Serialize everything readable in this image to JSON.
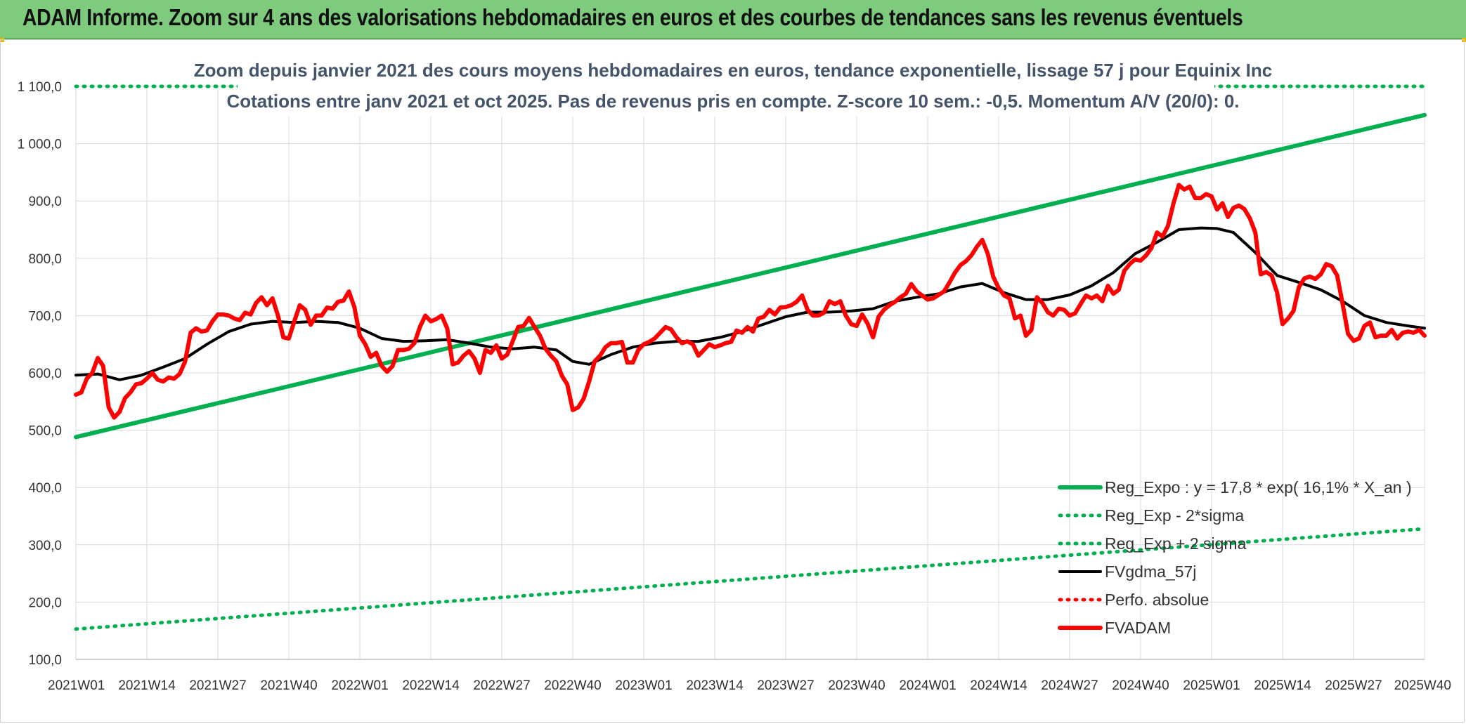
{
  "header": {
    "title": "ADAM Informe. Zoom sur 4 ans des valorisations hebdomadaires en euros et des courbes de tendances sans les revenus éventuels"
  },
  "colors": {
    "banner": "#7ecb7e",
    "regExpo": "#00b050",
    "regBands": "#00b050",
    "fvgdma": "#000000",
    "perfo": "#ff0000",
    "fvadam": "#ff0000",
    "grid": "#d9d9d9"
  },
  "chart_data": {
    "type": "line",
    "subtitle_line1": "Zoom depuis janvier 2021 des cours moyens hebdomadaires en euros, tendance exponentielle, lissage 57 j pour Equinix Inc",
    "subtitle_line2": "Cotations entre janv 2021 et oct 2025. Pas de revenus pris en compte. Z-score 10 sem.: -0,5. Momentum A/V (20/0): 0.",
    "ylim": [
      100,
      1100
    ],
    "y_ticks": [
      "100,0",
      "200,0",
      "300,0",
      "400,0",
      "500,0",
      "600,0",
      "700,0",
      "800,0",
      "900,0",
      "1 000,0",
      "1 100,0"
    ],
    "y_tick_values": [
      100,
      200,
      300,
      400,
      500,
      600,
      700,
      800,
      900,
      1000,
      1100
    ],
    "x_range_weeks": [
      0,
      247
    ],
    "x_ticks": [
      "2021W01",
      "2021W14",
      "2021W27",
      "2021W40",
      "2022W01",
      "2022W14",
      "2022W27",
      "2022W40",
      "2023W01",
      "2023W14",
      "2023W27",
      "2023W40",
      "2024W01",
      "2024W14",
      "2024W27",
      "2024W40",
      "2025W01",
      "2025W14",
      "2025W27",
      "2025W40"
    ],
    "x_tick_weeks": [
      0,
      13,
      26,
      39,
      52,
      65,
      78,
      91,
      104,
      117,
      130,
      143,
      156,
      169,
      182,
      195,
      208,
      221,
      234,
      247
    ],
    "legend": [
      {
        "label": "Reg_Expo : y = 17,8 * exp( 16,1% *  X_an )",
        "style": "solid-thick",
        "color": "#00b050"
      },
      {
        "label": "Reg_Exp - 2*sigma",
        "style": "dotted",
        "color": "#00b050"
      },
      {
        "label": "Reg_Exp + 2 sigma",
        "style": "dotted",
        "color": "#00b050"
      },
      {
        "label": "FVgdma_57j",
        "style": "solid",
        "color": "#000000"
      },
      {
        "label": "Perfo. absolue",
        "style": "dotted",
        "color": "#ff0000"
      },
      {
        "label": "FVADAM",
        "style": "solid-thick",
        "color": "#ff0000"
      }
    ],
    "series": [
      {
        "name": "Reg_Expo",
        "x": [
          0,
          247
        ],
        "y": [
          488,
          1050
        ]
      },
      {
        "name": "Reg_Exp - 2*sigma",
        "x": [
          0,
          247
        ],
        "y": [
          153,
          328
        ]
      },
      {
        "name": "Reg_Exp + 2 sigma",
        "x": [
          0,
          247
        ],
        "y": [
          1100,
          1100
        ]
      },
      {
        "name": "FVgdma_57j",
        "x": [
          0,
          4,
          8,
          12,
          16,
          20,
          24,
          28,
          32,
          36,
          40,
          44,
          48,
          52,
          56,
          60,
          64,
          68,
          72,
          76,
          80,
          84,
          88,
          91,
          94,
          98,
          102,
          106,
          110,
          114,
          118,
          122,
          126,
          130,
          134,
          138,
          142,
          146,
          150,
          154,
          158,
          162,
          166,
          170,
          174,
          178,
          182,
          186,
          190,
          194,
          198,
          202,
          206,
          209,
          212,
          216,
          220,
          224,
          228,
          232,
          236,
          240,
          244,
          247
        ],
        "y": [
          596,
          598,
          588,
          596,
          610,
          625,
          650,
          672,
          685,
          690,
          688,
          690,
          688,
          678,
          660,
          655,
          656,
          658,
          652,
          645,
          642,
          645,
          640,
          620,
          615,
          632,
          645,
          652,
          655,
          655,
          662,
          672,
          685,
          698,
          706,
          706,
          708,
          712,
          725,
          732,
          738,
          750,
          756,
          740,
          728,
          728,
          736,
          752,
          775,
          808,
          828,
          850,
          853,
          852,
          845,
          810,
          770,
          758,
          745,
          725,
          700,
          688,
          682,
          678
        ]
      },
      {
        "name": "FVADAM",
        "x": [
          0,
          1,
          2,
          3,
          4,
          5,
          6,
          7,
          8,
          9,
          10,
          11,
          12,
          13,
          14,
          15,
          16,
          17,
          18,
          19,
          20,
          21,
          22,
          23,
          24,
          25,
          26,
          27,
          28,
          29,
          30,
          31,
          32,
          33,
          34,
          35,
          36,
          37,
          38,
          39,
          40,
          41,
          42,
          43,
          44,
          45,
          46,
          47,
          48,
          49,
          50,
          51,
          52,
          53,
          54,
          55,
          56,
          57,
          58,
          59,
          60,
          61,
          62,
          63,
          64,
          65,
          66,
          67,
          68,
          69,
          70,
          71,
          72,
          73,
          74,
          75,
          76,
          77,
          78,
          79,
          80,
          81,
          82,
          83,
          84,
          85,
          86,
          87,
          88,
          89,
          90,
          91,
          92,
          93,
          94,
          95,
          96,
          97,
          98,
          99,
          100,
          101,
          102,
          103,
          104,
          105,
          106,
          107,
          108,
          109,
          110,
          111,
          112,
          113,
          114,
          115,
          116,
          117,
          118,
          119,
          120,
          121,
          122,
          123,
          124,
          125,
          126,
          127,
          128,
          129,
          130,
          131,
          132,
          133,
          134,
          135,
          136,
          137,
          138,
          139,
          140,
          141,
          142,
          143,
          144,
          145,
          146,
          147,
          148,
          149,
          150,
          151,
          152,
          153,
          154,
          155,
          156,
          157,
          158,
          159,
          160,
          161,
          162,
          163,
          164,
          165,
          166,
          167,
          168,
          169,
          170,
          171,
          172,
          173,
          174,
          175,
          176,
          177,
          178,
          179,
          180,
          181,
          182,
          183,
          184,
          185,
          186,
          187,
          188,
          189,
          190,
          191,
          192,
          193,
          194,
          195,
          196,
          197,
          198,
          199,
          200,
          201,
          202,
          203,
          204,
          205,
          206,
          207,
          208,
          209,
          210,
          211,
          212,
          213,
          214,
          215,
          216,
          217,
          218,
          219,
          220,
          221,
          222,
          223,
          224,
          225,
          226,
          227,
          228,
          229,
          230,
          231,
          232,
          233,
          234,
          235,
          236,
          237,
          238,
          239,
          240,
          241,
          242,
          243,
          244,
          245,
          246,
          247
        ],
        "y": [
          562,
          566,
          590,
          600,
          626,
          612,
          540,
          522,
          532,
          556,
          566,
          580,
          582,
          590,
          600,
          588,
          585,
          592,
          590,
          598,
          620,
          670,
          678,
          672,
          674,
          690,
          702,
          702,
          700,
          695,
          692,
          705,
          702,
          722,
          732,
          718,
          730,
          700,
          662,
          660,
          690,
          718,
          710,
          684,
          700,
          700,
          714,
          712,
          724,
          726,
          742,
          715,
          665,
          650,
          628,
          635,
          612,
          602,
          612,
          640,
          640,
          642,
          652,
          680,
          700,
          690,
          694,
          700,
          678,
          615,
          618,
          630,
          638,
          625,
          600,
          640,
          635,
          648,
          625,
          632,
          655,
          680,
          682,
          696,
          680,
          665,
          642,
          630,
          620,
          595,
          580,
          535,
          540,
          555,
          585,
          620,
          630,
          645,
          652,
          652,
          654,
          618,
          618,
          640,
          650,
          654,
          660,
          670,
          680,
          676,
          662,
          652,
          655,
          650,
          630,
          640,
          650,
          645,
          648,
          652,
          654,
          674,
          670,
          680,
          672,
          695,
          698,
          710,
          702,
          714,
          715,
          718,
          724,
          735,
          710,
          700,
          700,
          705,
          725,
          720,
          725,
          700,
          685,
          682,
          702,
          686,
          662,
          698,
          710,
          718,
          724,
          732,
          738,
          755,
          742,
          735,
          728,
          730,
          736,
          742,
          758,
          775,
          788,
          795,
          805,
          820,
          832,
          808,
          768,
          748,
          735,
          730,
          695,
          700,
          665,
          675,
          732,
          722,
          706,
          700,
          712,
          710,
          700,
          704,
          720,
          735,
          730,
          735,
          725,
          752,
          738,
          745,
          778,
          790,
          798,
          796,
          805,
          818,
          845,
          838,
          856,
          895,
          928,
          920,
          925,
          905,
          905,
          912,
          908,
          885,
          896,
          872,
          888,
          892,
          886,
          870,
          845,
          772,
          776,
          770,
          740,
          685,
          695,
          708,
          750,
          765,
          768,
          764,
          772,
          790,
          786,
          770,
          720,
          668,
          656,
          660,
          682,
          688,
          662,
          665,
          665,
          675,
          660,
          670,
          672,
          670,
          675,
          665
        ]
      }
    ]
  }
}
